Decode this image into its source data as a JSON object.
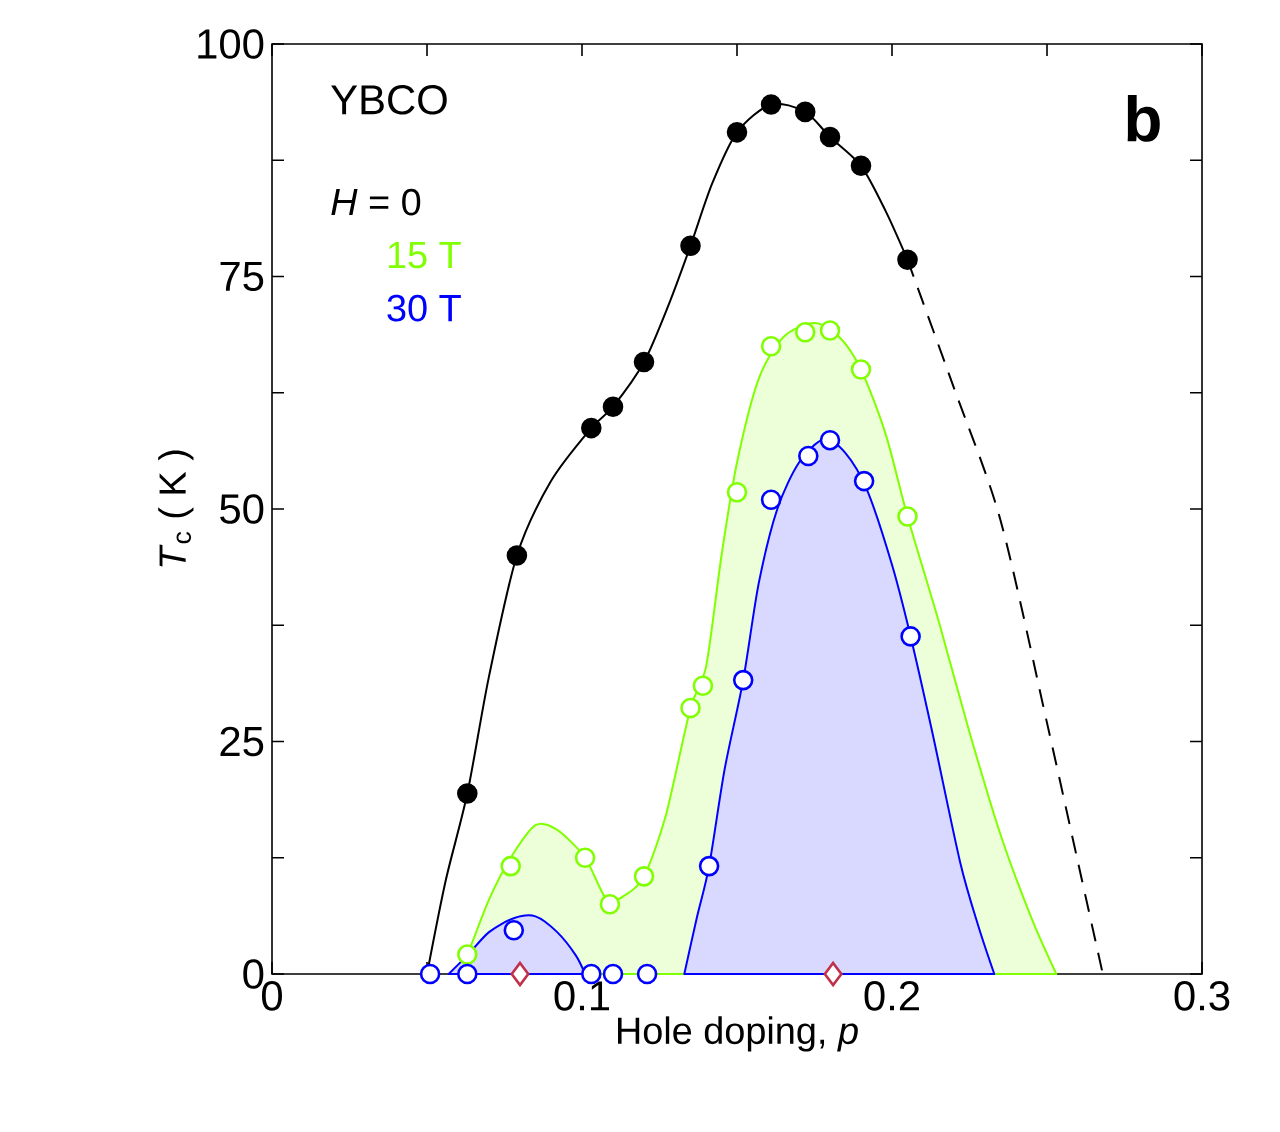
{
  "chart_data": {
    "type": "scatter",
    "xlabel": "Hole doping, *p*",
    "ylabel": "*T*$_{c}$ ( K )",
    "annotations": [
      "YBCO",
      "**b**"
    ],
    "xlim": [
      0,
      0.3
    ],
    "ylim": [
      0,
      100
    ],
    "xticks": [
      0,
      {
        "value": 0.05,
        "label": null
      },
      0.1,
      {
        "value": 0.15,
        "label": null
      },
      0.2,
      {
        "value": 0.25,
        "label": null
      },
      0.3
    ],
    "yticks": [
      0,
      {
        "value": 12.5,
        "label": null
      },
      25,
      {
        "value": 37.5,
        "label": null
      },
      50,
      {
        "value": 62.5,
        "label": null
      },
      75,
      {
        "value": 87.5,
        "label": null
      },
      100
    ],
    "legend": "top left",
    "series": [
      {
        "type": "area",
        "color": "#80ff00",
        "x": [
          0.059,
          0.063,
          0.07,
          0.077,
          0.085,
          0.092,
          0.101,
          0.108,
          0.114,
          0.12,
          0.127,
          0.135,
          0.14,
          0.145,
          0.15,
          0.157,
          0.165,
          0.175,
          0.183,
          0.19,
          0.198,
          0.205,
          0.215,
          0.225,
          0.235,
          0.245,
          0.253
        ],
        "values": [
          0,
          2.1,
          8,
          12.5,
          16,
          15.5,
          12.5,
          8,
          8.5,
          10.5,
          17,
          28.6,
          33,
          45,
          55,
          64,
          68.5,
          70,
          68.5,
          65,
          58,
          49.2,
          38,
          26,
          15,
          6,
          0
        ]
      },
      {
        "type": "area",
        "color": "#0000ff",
        "x": [
          0.057,
          0.063,
          0.07,
          0.078,
          0.085,
          0.092,
          0.098,
          0.101
        ],
        "values": [
          0,
          2,
          4.5,
          6,
          6.2,
          4.5,
          2,
          0
        ]
      },
      {
        "type": "area",
        "color": "#0000ff",
        "x": [
          0.133,
          0.137,
          0.141,
          0.146,
          0.152,
          0.157,
          0.163,
          0.17,
          0.178,
          0.185,
          0.192,
          0.2,
          0.206,
          0.213,
          0.222,
          0.228,
          0.233
        ],
        "values": [
          0,
          6,
          11.6,
          22,
          31.6,
          42,
          50,
          55,
          57.5,
          56,
          52,
          44,
          36.3,
          26,
          12,
          5,
          0
        ]
      },
      {
        "type": "line",
        "color": "#000000",
        "line_style": "solid",
        "x": [
          0.05,
          0.056,
          0.063,
          0.07,
          0.079,
          0.09,
          0.103,
          0.11,
          0.12,
          0.128,
          0.135,
          0.142,
          0.15,
          0.161,
          0.172,
          0.18,
          0.19,
          0.198,
          0.205
        ],
        "values": [
          0,
          10,
          19.4,
          32,
          45,
          53,
          58.7,
          61,
          65.8,
          72,
          78.3,
          85,
          90.5,
          93.5,
          92.7,
          90,
          86.9,
          82,
          76.8
        ]
      },
      {
        "type": "line",
        "color": "#000000",
        "line_style": "dashed",
        "x": [
          0.205,
          0.22,
          0.235,
          0.25,
          0.26,
          0.268
        ],
        "values": [
          76.8,
          63,
          48.8,
          27,
          12,
          0
        ]
      },
      {
        "name": "*H* = 0",
        "color": "#000000",
        "marker": "circle",
        "x": [
          0.063,
          0.079,
          0.103,
          0.11,
          0.12,
          0.135,
          0.15,
          0.161,
          0.172,
          0.18,
          0.19,
          0.205
        ],
        "values": [
          19.4,
          45,
          58.7,
          61,
          65.8,
          78.3,
          90.5,
          93.5,
          92.7,
          90,
          86.9,
          76.8
        ]
      },
      {
        "name": "15 T",
        "color": "#80ff00",
        "marker": "circle",
        "x": [
          0.063,
          0.077,
          0.101,
          0.109,
          0.12,
          0.135,
          0.139,
          0.15,
          0.161,
          0.172,
          0.18,
          0.19,
          0.205
        ],
        "values": [
          2.1,
          11.6,
          12.5,
          7.5,
          10.5,
          28.6,
          31,
          51.8,
          67.5,
          69,
          69.2,
          65,
          49.2
        ]
      },
      {
        "name": "30 T",
        "color": "#0000ff",
        "marker": "circle",
        "x": [
          0.051,
          0.063,
          0.078,
          0.103,
          0.11,
          0.121,
          0.141,
          0.152,
          0.161,
          0.173,
          0.18,
          0.191,
          0.206
        ],
        "values": [
          0,
          0,
          4.7,
          0,
          0,
          0,
          11.6,
          31.6,
          51,
          55.7,
          57.4,
          53,
          36.3
        ]
      },
      {
        "color": "#c0304a",
        "marker": "diamond",
        "x": [
          0.08,
          0.181
        ],
        "values": [
          0,
          0
        ]
      }
    ]
  }
}
